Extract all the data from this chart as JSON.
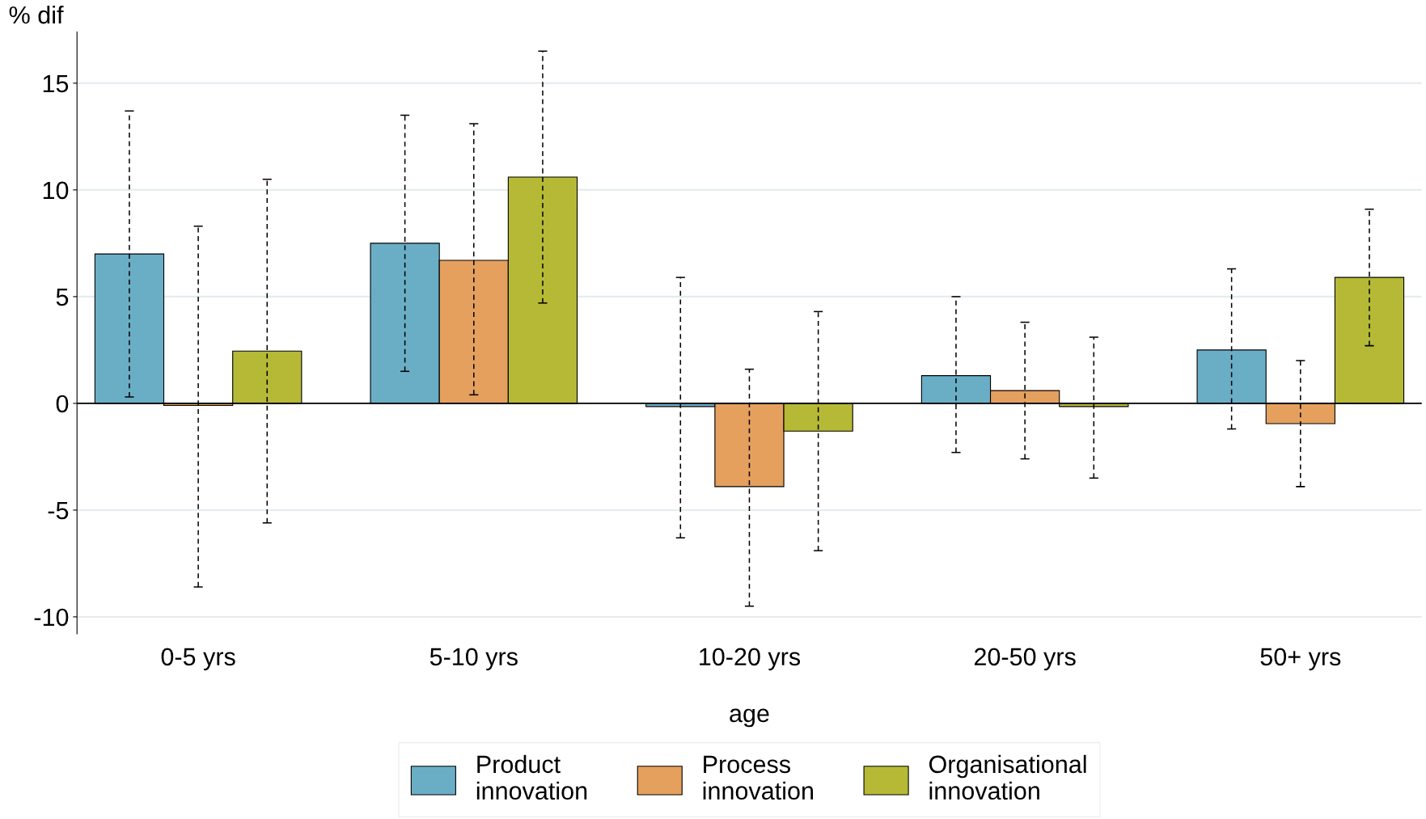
{
  "chart_data": {
    "type": "bar",
    "ylabel": "% dif",
    "xlabel": "age",
    "categories": [
      "0-5 yrs",
      "5-10 yrs",
      "10-20 yrs",
      "20-50 yrs",
      "50+ yrs"
    ],
    "series": [
      {
        "name": "Product\ninnovation",
        "color": "#6aaec6",
        "values": [
          7.0,
          7.5,
          -0.15,
          1.3,
          2.5
        ],
        "errors": [
          [
            0.3,
            13.7
          ],
          [
            1.5,
            13.5
          ],
          [
            -6.3,
            5.9
          ],
          [
            -2.3,
            5.0
          ],
          [
            -1.2,
            6.3
          ]
        ]
      },
      {
        "name": "Process\ninnovation",
        "color": "#e5a05e",
        "values": [
          -0.1,
          6.7,
          -3.9,
          0.6,
          -0.95
        ],
        "errors": [
          [
            -8.6,
            8.3
          ],
          [
            0.4,
            13.1
          ],
          [
            -9.5,
            1.6
          ],
          [
            -2.6,
            3.8
          ],
          [
            -3.9,
            2.0
          ]
        ]
      },
      {
        "name": "Organisational\ninnovation",
        "color": "#b5b935",
        "values": [
          2.45,
          10.6,
          -1.3,
          -0.15,
          5.9
        ],
        "errors": [
          [
            -5.6,
            10.5
          ],
          [
            4.7,
            16.5
          ],
          [
            -6.9,
            4.3
          ],
          [
            -3.5,
            3.1
          ],
          [
            2.7,
            9.1
          ]
        ]
      }
    ],
    "ylim": [
      -10.8,
      17.4
    ],
    "yticks": [
      -10,
      -5,
      0,
      5,
      10,
      15
    ],
    "grid": "y",
    "legend": "bottom",
    "ref_lines": [
      {
        "axis": "y",
        "value": 0,
        "color": "#000000"
      }
    ]
  }
}
